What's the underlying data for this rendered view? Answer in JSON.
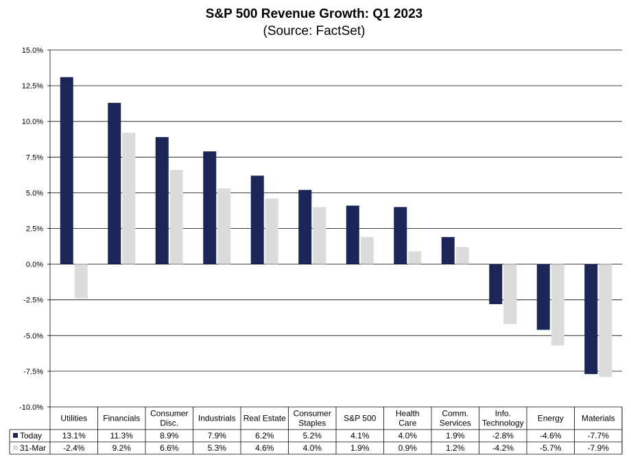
{
  "chart_data": {
    "type": "bar",
    "title": "S&P 500 Revenue Growth: Q1 2023",
    "subtitle": "(Source: FactSet)",
    "categories": [
      [
        "Utilities"
      ],
      [
        "Financials"
      ],
      [
        "Consumer",
        "Disc."
      ],
      [
        "Industrials"
      ],
      [
        "Real Estate"
      ],
      [
        "Consumer",
        "Staples"
      ],
      [
        "S&P 500"
      ],
      [
        "Health",
        "Care"
      ],
      [
        "Comm.",
        "Services"
      ],
      [
        "Info.",
        "Technology"
      ],
      [
        "Energy"
      ],
      [
        "Materials"
      ]
    ],
    "series": [
      {
        "name": "Today",
        "color": "#1b2656",
        "values": [
          13.1,
          11.3,
          8.9,
          7.9,
          6.2,
          5.2,
          4.1,
          4.0,
          1.9,
          -2.8,
          -4.6,
          -7.7
        ],
        "labels": [
          "13.1%",
          "11.3%",
          "8.9%",
          "7.9%",
          "6.2%",
          "5.2%",
          "4.1%",
          "4.0%",
          "1.9%",
          "-2.8%",
          "-4.6%",
          "-7.7%"
        ]
      },
      {
        "name": "31-Mar",
        "color": "#dcdcdc",
        "values": [
          -2.4,
          9.2,
          6.6,
          5.3,
          4.6,
          4.0,
          1.9,
          0.9,
          1.2,
          -4.2,
          -5.7,
          -7.9
        ],
        "labels": [
          "-2.4%",
          "9.2%",
          "6.6%",
          "5.3%",
          "4.6%",
          "4.0%",
          "1.9%",
          "0.9%",
          "1.2%",
          "-4.2%",
          "-5.7%",
          "-7.9%"
        ]
      }
    ],
    "ylim": [
      -10,
      15
    ],
    "yticks": [
      "15.0%",
      "12.5%",
      "10.0%",
      "7.5%",
      "5.0%",
      "2.5%",
      "0.0%",
      "-2.5%",
      "-5.0%",
      "-7.5%",
      "-10.0%"
    ],
    "grid": true,
    "legend": "data-table"
  }
}
